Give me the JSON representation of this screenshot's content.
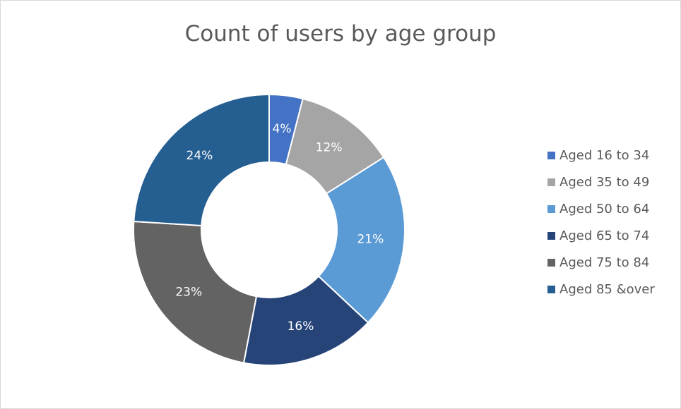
{
  "chart_data": {
    "type": "pie",
    "variant": "donut",
    "title": "Count of users by age group",
    "legend_position": "right",
    "series": [
      {
        "values": [
          4,
          12,
          21,
          16,
          23,
          24
        ],
        "labels": [
          "4%",
          "12%",
          "21%",
          "16%",
          "23%",
          "24%"
        ]
      }
    ],
    "categories": [
      "Aged 16 to 34",
      "Aged 35 to 49",
      "Aged 50 to 64",
      "Aged 65 to 74",
      "Aged 75 to 84",
      "Aged 85 &over"
    ],
    "colors": [
      "#4472c4",
      "#a5a5a5",
      "#5b9bd5",
      "#264478",
      "#636363",
      "#255e91"
    ]
  }
}
